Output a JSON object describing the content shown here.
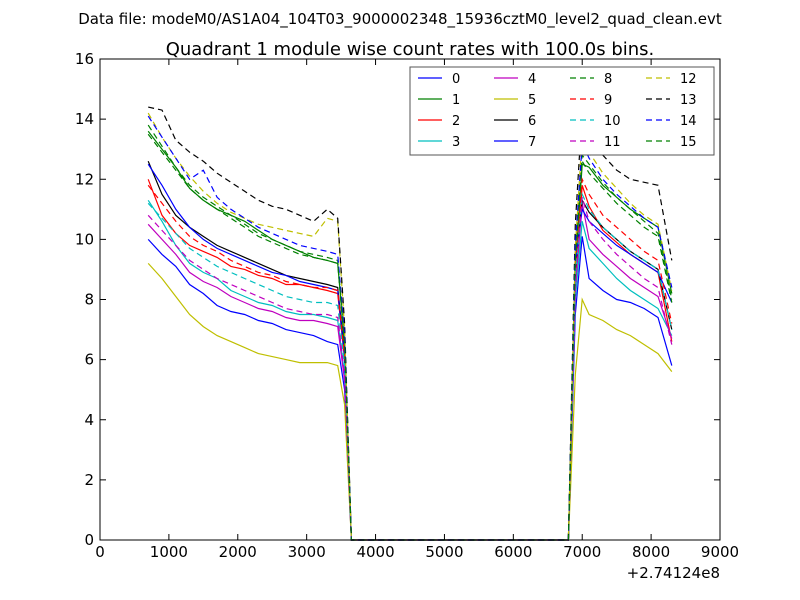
{
  "suptitle": "Data file: modeM0/AS1A04_104T03_9000002348_15936cztM0_level2_quad_clean.evt",
  "chart_data": {
    "type": "line",
    "title": "Quadrant 1 module wise count rates with 100.0s bins.",
    "xlabel": "",
    "ylabel": "",
    "x_offset_label": "+2.74124e8",
    "xlim": [
      0,
      9000
    ],
    "ylim": [
      0,
      16
    ],
    "xticks": [
      0,
      1000,
      2000,
      3000,
      4000,
      5000,
      6000,
      7000,
      8000,
      9000
    ],
    "yticks": [
      0,
      2,
      4,
      6,
      8,
      10,
      12,
      14,
      16
    ],
    "gap_x": [
      3650,
      6800
    ],
    "legend_position": "top-right",
    "series": [
      {
        "name": "0",
        "color": "#0000ff",
        "dash": "solid",
        "x": [
          700,
          900,
          1100,
          1300,
          1500,
          1700,
          1900,
          2100,
          2300,
          2500,
          2700,
          2900,
          3100,
          3300,
          3450,
          3550,
          3650,
          6800,
          6900,
          7000,
          7100,
          7300,
          7500,
          7700,
          7900,
          8100,
          8300
        ],
        "y": [
          10.0,
          9.5,
          9.1,
          8.5,
          8.2,
          7.8,
          7.6,
          7.5,
          7.3,
          7.2,
          7.0,
          6.9,
          6.8,
          6.6,
          6.5,
          5.0,
          0,
          0,
          7.5,
          10.1,
          8.7,
          8.3,
          8.0,
          7.9,
          7.7,
          7.4,
          5.8
        ]
      },
      {
        "name": "1",
        "color": "#008000",
        "dash": "solid",
        "x": [
          700,
          900,
          1100,
          1300,
          1500,
          1700,
          1900,
          2100,
          2300,
          2500,
          2700,
          2900,
          3100,
          3300,
          3450,
          3550,
          3650,
          6800,
          6900,
          7000,
          7100,
          7300,
          7500,
          7700,
          7900,
          8100,
          8300
        ],
        "y": [
          13.6,
          13.0,
          12.4,
          11.7,
          11.3,
          11.0,
          10.8,
          10.6,
          10.3,
          10.0,
          9.8,
          9.6,
          9.4,
          9.3,
          9.2,
          6.5,
          0,
          0,
          9.0,
          12.5,
          12.4,
          11.8,
          11.4,
          11.0,
          10.7,
          10.4,
          8.2
        ]
      },
      {
        "name": "2",
        "color": "#ff0000",
        "dash": "solid",
        "x": [
          700,
          900,
          1100,
          1300,
          1500,
          1700,
          1900,
          2100,
          2300,
          2500,
          2700,
          2900,
          3100,
          3300,
          3450,
          3550,
          3650,
          6800,
          6900,
          7000,
          7100,
          7300,
          7500,
          7700,
          7900,
          8100,
          8300
        ],
        "y": [
          12.0,
          10.8,
          10.2,
          9.8,
          9.6,
          9.4,
          9.1,
          9.0,
          8.8,
          8.7,
          8.5,
          8.5,
          8.4,
          8.3,
          8.2,
          6.0,
          0,
          0,
          8.5,
          11.8,
          11.1,
          10.3,
          9.9,
          9.5,
          9.2,
          8.9,
          6.6
        ]
      },
      {
        "name": "3",
        "color": "#00bfbf",
        "dash": "solid",
        "x": [
          700,
          900,
          1100,
          1300,
          1500,
          1700,
          1900,
          2100,
          2300,
          2500,
          2700,
          2900,
          3100,
          3300,
          3450,
          3550,
          3650,
          6800,
          6900,
          7000,
          7100,
          7300,
          7500,
          7700,
          7900,
          8100,
          8300
        ],
        "y": [
          11.3,
          10.6,
          9.8,
          9.2,
          8.9,
          8.7,
          8.3,
          8.1,
          7.9,
          7.8,
          7.6,
          7.5,
          7.5,
          7.4,
          7.3,
          5.5,
          0,
          0,
          8.0,
          10.6,
          9.7,
          9.2,
          8.7,
          8.3,
          8.0,
          7.7,
          6.8
        ]
      },
      {
        "name": "4",
        "color": "#bf00bf",
        "dash": "solid",
        "x": [
          700,
          900,
          1100,
          1300,
          1500,
          1700,
          1900,
          2100,
          2300,
          2500,
          2700,
          2900,
          3100,
          3300,
          3450,
          3550,
          3650,
          6800,
          6900,
          7000,
          7100,
          7300,
          7500,
          7700,
          7900,
          8100,
          8300
        ],
        "y": [
          10.5,
          10.0,
          9.5,
          8.9,
          8.6,
          8.4,
          8.1,
          7.9,
          7.7,
          7.6,
          7.4,
          7.3,
          7.3,
          7.2,
          7.1,
          5.3,
          0,
          0,
          8.4,
          11.2,
          10.0,
          9.5,
          9.1,
          8.7,
          8.4,
          8.1,
          6.7
        ]
      },
      {
        "name": "5",
        "color": "#bfbf00",
        "dash": "solid",
        "x": [
          700,
          900,
          1100,
          1300,
          1500,
          1700,
          1900,
          2100,
          2300,
          2500,
          2700,
          2900,
          3100,
          3300,
          3450,
          3550,
          3650,
          6800,
          6900,
          7000,
          7100,
          7300,
          7500,
          7700,
          7900,
          8100,
          8300
        ],
        "y": [
          9.2,
          8.7,
          8.1,
          7.5,
          7.1,
          6.8,
          6.6,
          6.4,
          6.2,
          6.1,
          6.0,
          5.9,
          5.9,
          5.9,
          5.8,
          4.5,
          0,
          0,
          5.5,
          8.0,
          7.5,
          7.3,
          7.0,
          6.8,
          6.5,
          6.2,
          5.6
        ]
      },
      {
        "name": "6",
        "color": "#000000",
        "dash": "solid",
        "x": [
          700,
          900,
          1100,
          1300,
          1500,
          1700,
          1900,
          2100,
          2300,
          2500,
          2700,
          2900,
          3100,
          3300,
          3450,
          3550,
          3650,
          6800,
          6900,
          7000,
          7100,
          7300,
          7500,
          7700,
          7900,
          8100,
          8300
        ],
        "y": [
          12.6,
          11.5,
          10.8,
          10.4,
          10.1,
          9.8,
          9.6,
          9.4,
          9.2,
          9.0,
          8.8,
          8.7,
          8.6,
          8.5,
          8.4,
          6.2,
          0,
          0,
          9.0,
          11.3,
          10.9,
          10.4,
          10.0,
          9.6,
          9.3,
          9.0,
          7.0
        ]
      },
      {
        "name": "7",
        "color": "#0000ff",
        "dash": "solid",
        "x": [
          700,
          900,
          1100,
          1300,
          1500,
          1700,
          1900,
          2100,
          2300,
          2500,
          2700,
          2900,
          3100,
          3300,
          3450,
          3550,
          3650,
          6800,
          6900,
          7000,
          7100,
          7300,
          7500,
          7700,
          7900,
          8100,
          8300
        ],
        "y": [
          12.5,
          11.8,
          11.0,
          10.4,
          10.0,
          9.7,
          9.5,
          9.3,
          9.1,
          8.9,
          8.8,
          8.6,
          8.5,
          8.4,
          8.3,
          6.1,
          0,
          0,
          9.2,
          11.0,
          10.6,
          10.2,
          9.8,
          9.5,
          9.2,
          8.9,
          7.9
        ]
      },
      {
        "name": "8",
        "color": "#008000",
        "dash": "dashed",
        "x": [
          700,
          900,
          1100,
          1300,
          1500,
          1700,
          1900,
          2100,
          2300,
          2500,
          2700,
          2900,
          3100,
          3300,
          3450,
          3550,
          3650,
          6800,
          6900,
          7000,
          7100,
          7300,
          7500,
          7700,
          7900,
          8100,
          8300
        ],
        "y": [
          13.8,
          13.1,
          12.4,
          11.8,
          11.4,
          11.1,
          10.8,
          10.5,
          10.2,
          10.0,
          9.8,
          9.6,
          9.5,
          9.4,
          9.3,
          6.6,
          0,
          0,
          9.5,
          12.8,
          12.5,
          11.9,
          11.4,
          11.0,
          10.6,
          10.2,
          8.0
        ]
      },
      {
        "name": "9",
        "color": "#ff0000",
        "dash": "dashed",
        "x": [
          700,
          900,
          1100,
          1300,
          1500,
          1700,
          1900,
          2100,
          2300,
          2500,
          2700,
          2900,
          3100,
          3300,
          3450,
          3550,
          3650,
          6800,
          6900,
          7000,
          7100,
          7300,
          7500,
          7700,
          7900,
          8100,
          8300
        ],
        "y": [
          11.8,
          11.2,
          10.6,
          10.1,
          9.8,
          9.6,
          9.3,
          9.1,
          8.9,
          8.8,
          8.6,
          8.5,
          8.4,
          8.4,
          8.3,
          6.1,
          0,
          0,
          9.0,
          12.0,
          11.5,
          10.8,
          10.4,
          10.0,
          9.6,
          9.3,
          7.2
        ]
      },
      {
        "name": "10",
        "color": "#00bfbf",
        "dash": "dashed",
        "x": [
          700,
          900,
          1100,
          1300,
          1500,
          1700,
          1900,
          2100,
          2300,
          2500,
          2700,
          2900,
          3100,
          3300,
          3450,
          3550,
          3650,
          6800,
          6900,
          7000,
          7100,
          7300,
          7500,
          7700,
          7900,
          8100,
          8300
        ],
        "y": [
          11.2,
          10.7,
          10.2,
          9.7,
          9.4,
          9.1,
          8.9,
          8.7,
          8.5,
          8.3,
          8.1,
          8.0,
          7.9,
          7.9,
          7.8,
          5.8,
          0,
          0,
          8.7,
          11.5,
          11.0,
          10.4,
          10.0,
          9.6,
          9.3,
          9.0,
          7.0
        ]
      },
      {
        "name": "11",
        "color": "#bf00bf",
        "dash": "dashed",
        "x": [
          700,
          900,
          1100,
          1300,
          1500,
          1700,
          1900,
          2100,
          2300,
          2500,
          2700,
          2900,
          3100,
          3300,
          3450,
          3550,
          3650,
          6800,
          6900,
          7000,
          7100,
          7300,
          7500,
          7700,
          7900,
          8100,
          8300
        ],
        "y": [
          10.8,
          10.3,
          9.8,
          9.3,
          9.0,
          8.7,
          8.5,
          8.3,
          8.1,
          7.9,
          7.7,
          7.6,
          7.5,
          7.5,
          7.4,
          5.5,
          0,
          0,
          8.3,
          11.4,
          10.6,
          10.0,
          9.5,
          9.1,
          8.7,
          8.4,
          6.5
        ]
      },
      {
        "name": "12",
        "color": "#bfbf00",
        "dash": "dashed",
        "x": [
          700,
          900,
          1100,
          1300,
          1500,
          1700,
          1900,
          2100,
          2300,
          2500,
          2700,
          2900,
          3100,
          3300,
          3450,
          3550,
          3650,
          6800,
          6900,
          7000,
          7100,
          7300,
          7500,
          7700,
          7900,
          8100,
          8300
        ],
        "y": [
          14.2,
          13.4,
          12.7,
          12.1,
          11.6,
          11.2,
          10.9,
          10.7,
          10.5,
          10.4,
          10.3,
          10.2,
          10.1,
          10.7,
          10.6,
          7.0,
          0,
          0,
          9.7,
          13.5,
          12.9,
          12.2,
          11.7,
          11.2,
          10.8,
          10.5,
          8.3
        ]
      },
      {
        "name": "13",
        "color": "#000000",
        "dash": "dashed",
        "x": [
          700,
          900,
          1100,
          1300,
          1500,
          1700,
          1900,
          2100,
          2300,
          2500,
          2700,
          2900,
          3100,
          3300,
          3450,
          3550,
          3650,
          6800,
          6900,
          7000,
          7100,
          7300,
          7500,
          7700,
          7900,
          8100,
          8300
        ],
        "y": [
          14.4,
          14.3,
          13.3,
          12.9,
          12.6,
          12.2,
          11.9,
          11.6,
          11.3,
          11.1,
          11.0,
          10.8,
          10.6,
          11.0,
          10.7,
          7.2,
          0,
          0,
          10.5,
          14.3,
          13.4,
          12.8,
          12.3,
          12.0,
          11.9,
          11.8,
          9.3
        ]
      },
      {
        "name": "14",
        "color": "#0000ff",
        "dash": "dashed",
        "x": [
          700,
          900,
          1100,
          1300,
          1500,
          1700,
          1900,
          2100,
          2300,
          2500,
          2700,
          2900,
          3100,
          3300,
          3450,
          3550,
          3650,
          6800,
          6900,
          7000,
          7100,
          7300,
          7500,
          7700,
          7900,
          8100,
          8300
        ],
        "y": [
          14.1,
          13.4,
          12.7,
          12.0,
          12.3,
          11.4,
          11.0,
          10.7,
          10.4,
          10.2,
          10.0,
          9.8,
          9.7,
          9.6,
          9.5,
          6.8,
          0,
          0,
          9.8,
          13.2,
          12.7,
          12.0,
          11.5,
          11.1,
          10.7,
          10.4,
          8.4
        ]
      },
      {
        "name": "15",
        "color": "#008000",
        "dash": "dashed",
        "x": [
          700,
          900,
          1100,
          1300,
          1500,
          1700,
          1900,
          2100,
          2300,
          2500,
          2700,
          2900,
          3100,
          3300,
          3450,
          3550,
          3650,
          6800,
          6900,
          7000,
          7100,
          7300,
          7500,
          7700,
          7900,
          8100,
          8300
        ],
        "y": [
          13.5,
          12.9,
          12.3,
          11.7,
          11.3,
          11.0,
          10.7,
          10.4,
          10.1,
          9.9,
          9.7,
          9.5,
          9.4,
          9.3,
          9.2,
          6.5,
          0,
          0,
          9.3,
          12.6,
          12.2,
          11.7,
          11.2,
          10.8,
          10.4,
          10.1,
          7.9
        ]
      }
    ]
  }
}
